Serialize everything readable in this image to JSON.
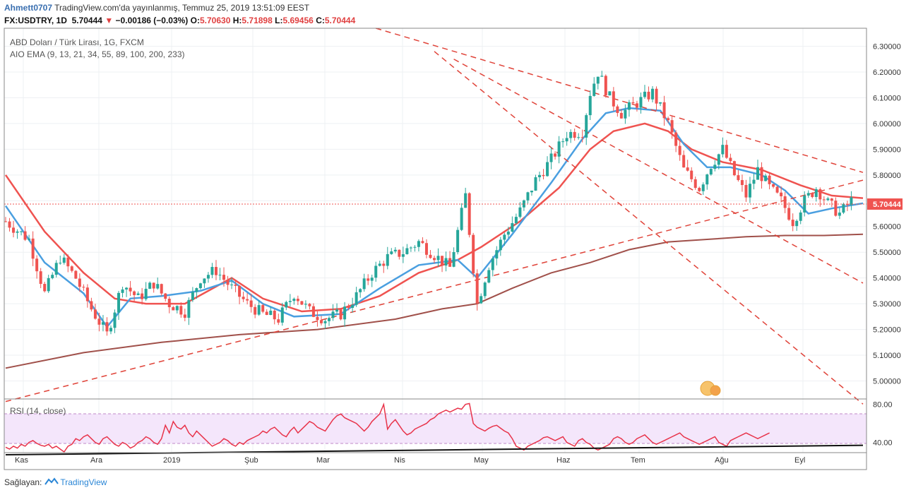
{
  "header": {
    "author": "Ahmett0707",
    "published": " TradingView.com'da yayınlanmış, Temmuz 25, 2019 13:51:09 EEST",
    "symbol": "FX:USDTRY, 1D",
    "last": "5.70444",
    "change": "−0.00186 (−0.03%)",
    "o_label": "O:",
    "o": "5.70630",
    "h_label": "H:",
    "h": "5.71898",
    "l_label": "L:",
    "l": "5.69456",
    "c_label": "C:",
    "c": "5.70444"
  },
  "footer": {
    "label": "Sağlayan:",
    "brand": "TradingView"
  },
  "colors": {
    "up": "#26a69a",
    "down": "#ef5350",
    "ema_fast": "#4a9fe0",
    "ema_mid": "#ef5350",
    "ema_slow": "#a0504a",
    "trend": "#e0443a",
    "rsi": "#e8334a",
    "rsi_band": "#f4e6fb"
  },
  "chart_data": [
    {
      "type": "candlestick",
      "title": "ABD Doları / Türk Lirası, 1G, FXCM",
      "indicator": "AIO EMA (9, 13, 21, 34, 55, 89, 100, 200, 233)",
      "ylim": [
        4.93,
        6.37
      ],
      "yticks": [
        "6.30000",
        "6.20000",
        "6.10000",
        "6.00000",
        "5.90000",
        "5.80000",
        "5.70000",
        "5.60000",
        "5.50000",
        "5.40000",
        "5.30000",
        "5.20000",
        "5.10000",
        "5.00000"
      ],
      "last_price_label": "5.70444",
      "x_labels": [
        "Kas",
        "Ara",
        "2019",
        "Şub",
        "Mar",
        "Nis",
        "May",
        "Haz",
        "Tem",
        "Ağu",
        "Eyl"
      ],
      "close_path": [
        [
          0,
          5.62
        ],
        [
          6,
          5.55
        ],
        [
          10,
          5.34
        ],
        [
          14,
          5.48
        ],
        [
          18,
          5.4
        ],
        [
          22,
          5.28
        ],
        [
          26,
          5.18
        ],
        [
          30,
          5.38
        ],
        [
          34,
          5.32
        ],
        [
          38,
          5.38
        ],
        [
          42,
          5.3
        ],
        [
          46,
          5.27
        ],
        [
          50,
          5.4
        ],
        [
          54,
          5.43
        ],
        [
          58,
          5.36
        ],
        [
          62,
          5.3
        ],
        [
          66,
          5.26
        ],
        [
          70,
          5.24
        ],
        [
          74,
          5.34
        ],
        [
          78,
          5.27
        ],
        [
          82,
          5.24
        ],
        [
          86,
          5.26
        ],
        [
          90,
          5.33
        ],
        [
          94,
          5.42
        ],
        [
          98,
          5.48
        ],
        [
          102,
          5.5
        ],
        [
          106,
          5.54
        ],
        [
          110,
          5.49
        ],
        [
          114,
          5.44
        ],
        [
          118,
          5.72
        ],
        [
          121,
          5.3
        ],
        [
          124,
          5.45
        ],
        [
          128,
          5.57
        ],
        [
          132,
          5.66
        ],
        [
          136,
          5.78
        ],
        [
          140,
          5.86
        ],
        [
          144,
          5.96
        ],
        [
          148,
          5.97
        ],
        [
          150,
          6.12
        ],
        [
          152,
          6.2
        ],
        [
          155,
          6.1
        ],
        [
          158,
          6.04
        ],
        [
          160,
          6.06
        ],
        [
          163,
          6.09
        ],
        [
          166,
          6.12
        ],
        [
          170,
          6.0
        ],
        [
          174,
          5.82
        ],
        [
          178,
          5.75
        ],
        [
          181,
          5.84
        ],
        [
          184,
          5.9
        ],
        [
          187,
          5.8
        ],
        [
          190,
          5.72
        ],
        [
          193,
          5.82
        ],
        [
          196,
          5.75
        ],
        [
          199,
          5.7
        ],
        [
          202,
          5.62
        ],
        [
          205,
          5.7
        ],
        [
          208,
          5.75
        ],
        [
          211,
          5.69
        ],
        [
          214,
          5.65
        ],
        [
          217,
          5.7
        ],
        [
          220,
          5.7
        ]
      ],
      "ema_fast": [
        [
          0,
          5.68
        ],
        [
          10,
          5.46
        ],
        [
          20,
          5.34
        ],
        [
          26,
          5.21
        ],
        [
          32,
          5.32
        ],
        [
          40,
          5.33
        ],
        [
          50,
          5.35
        ],
        [
          58,
          5.39
        ],
        [
          66,
          5.3
        ],
        [
          74,
          5.25
        ],
        [
          86,
          5.26
        ],
        [
          96,
          5.36
        ],
        [
          106,
          5.45
        ],
        [
          116,
          5.47
        ],
        [
          121,
          5.4
        ],
        [
          130,
          5.57
        ],
        [
          140,
          5.77
        ],
        [
          148,
          5.94
        ],
        [
          154,
          6.04
        ],
        [
          160,
          6.06
        ],
        [
          168,
          6.05
        ],
        [
          174,
          5.92
        ],
        [
          180,
          5.83
        ],
        [
          186,
          5.83
        ],
        [
          194,
          5.8
        ],
        [
          200,
          5.74
        ],
        [
          206,
          5.65
        ],
        [
          212,
          5.67
        ],
        [
          220,
          5.69
        ]
      ],
      "ema_mid": [
        [
          0,
          5.8
        ],
        [
          10,
          5.58
        ],
        [
          20,
          5.42
        ],
        [
          28,
          5.32
        ],
        [
          36,
          5.3
        ],
        [
          46,
          5.3
        ],
        [
          58,
          5.4
        ],
        [
          66,
          5.32
        ],
        [
          76,
          5.27
        ],
        [
          86,
          5.28
        ],
        [
          96,
          5.33
        ],
        [
          106,
          5.42
        ],
        [
          116,
          5.47
        ],
        [
          122,
          5.52
        ],
        [
          132,
          5.62
        ],
        [
          142,
          5.75
        ],
        [
          150,
          5.9
        ],
        [
          156,
          5.97
        ],
        [
          164,
          6.0
        ],
        [
          170,
          5.97
        ],
        [
          176,
          5.9
        ],
        [
          184,
          5.85
        ],
        [
          194,
          5.82
        ],
        [
          204,
          5.76
        ],
        [
          212,
          5.72
        ],
        [
          220,
          5.71
        ]
      ],
      "ema_slow": [
        [
          0,
          5.05
        ],
        [
          20,
          5.11
        ],
        [
          40,
          5.15
        ],
        [
          60,
          5.18
        ],
        [
          80,
          5.2
        ],
        [
          100,
          5.24
        ],
        [
          112,
          5.28
        ],
        [
          121,
          5.3
        ],
        [
          130,
          5.36
        ],
        [
          140,
          5.42
        ],
        [
          150,
          5.46
        ],
        [
          160,
          5.51
        ],
        [
          170,
          5.54
        ],
        [
          180,
          5.55
        ],
        [
          190,
          5.56
        ],
        [
          200,
          5.565
        ],
        [
          210,
          5.565
        ],
        [
          220,
          5.57
        ]
      ],
      "trendlines": [
        {
          "name": "upper-long",
          "from": [
            95,
            6.37
          ],
          "to": [
            220,
            5.81
          ]
        },
        {
          "name": "mid-down",
          "from": [
            115,
            6.25
          ],
          "to": [
            220,
            5.38
          ]
        },
        {
          "name": "steep-down",
          "from": [
            110,
            6.28
          ],
          "to": [
            220,
            4.91
          ]
        },
        {
          "name": "support-up",
          "from": [
            0,
            4.92
          ],
          "to": [
            220,
            5.78
          ]
        }
      ]
    },
    {
      "type": "line",
      "title": "RSI (14, close)",
      "ylim": [
        30,
        85
      ],
      "yticks": [
        "80.00",
        "40.00"
      ],
      "bands": [
        70,
        30
      ],
      "values": [
        35,
        33,
        36,
        34,
        38,
        36,
        40,
        42,
        39,
        37,
        36,
        38,
        34,
        36,
        33,
        30,
        36,
        38,
        44,
        42,
        46,
        48,
        44,
        40,
        38,
        44,
        46,
        42,
        38,
        36,
        40,
        38,
        34,
        36,
        40,
        42,
        46,
        44,
        40,
        38,
        44,
        58,
        50,
        62,
        56,
        54,
        58,
        50,
        46,
        52,
        48,
        44,
        40,
        36,
        38,
        40,
        44,
        42,
        38,
        36,
        40,
        38,
        42,
        44,
        46,
        48,
        52,
        50,
        54,
        56,
        52,
        48,
        46,
        52,
        56,
        50,
        54,
        58,
        62,
        60,
        56,
        54,
        52,
        58,
        64,
        68,
        70,
        66,
        64,
        62,
        60,
        56,
        52,
        56,
        62,
        66,
        70,
        80,
        54,
        60,
        64,
        58,
        52,
        48,
        50,
        54,
        56,
        58,
        60,
        64,
        66,
        70,
        72,
        74,
        72,
        74,
        76,
        75,
        80,
        81,
        60,
        56,
        54,
        52,
        55,
        57,
        58,
        55,
        52,
        50,
        44,
        36,
        34,
        32,
        36,
        38,
        40,
        42,
        45,
        46,
        44,
        42,
        44,
        46,
        40,
        38,
        36,
        42,
        44,
        40,
        38,
        34,
        32,
        34,
        36,
        38,
        44,
        46,
        44,
        40,
        38,
        40,
        44,
        46,
        48,
        44,
        40,
        38,
        40,
        42,
        44,
        46,
        48,
        50,
        46,
        44,
        42,
        40,
        38,
        40,
        42,
        44,
        46,
        40,
        38,
        36,
        42,
        44,
        46,
        48,
        50,
        48,
        46,
        44,
        46,
        48,
        50
      ],
      "trendline": {
        "from": [
          0,
          27
        ],
        "to": [
          220,
          37
        ]
      }
    }
  ]
}
